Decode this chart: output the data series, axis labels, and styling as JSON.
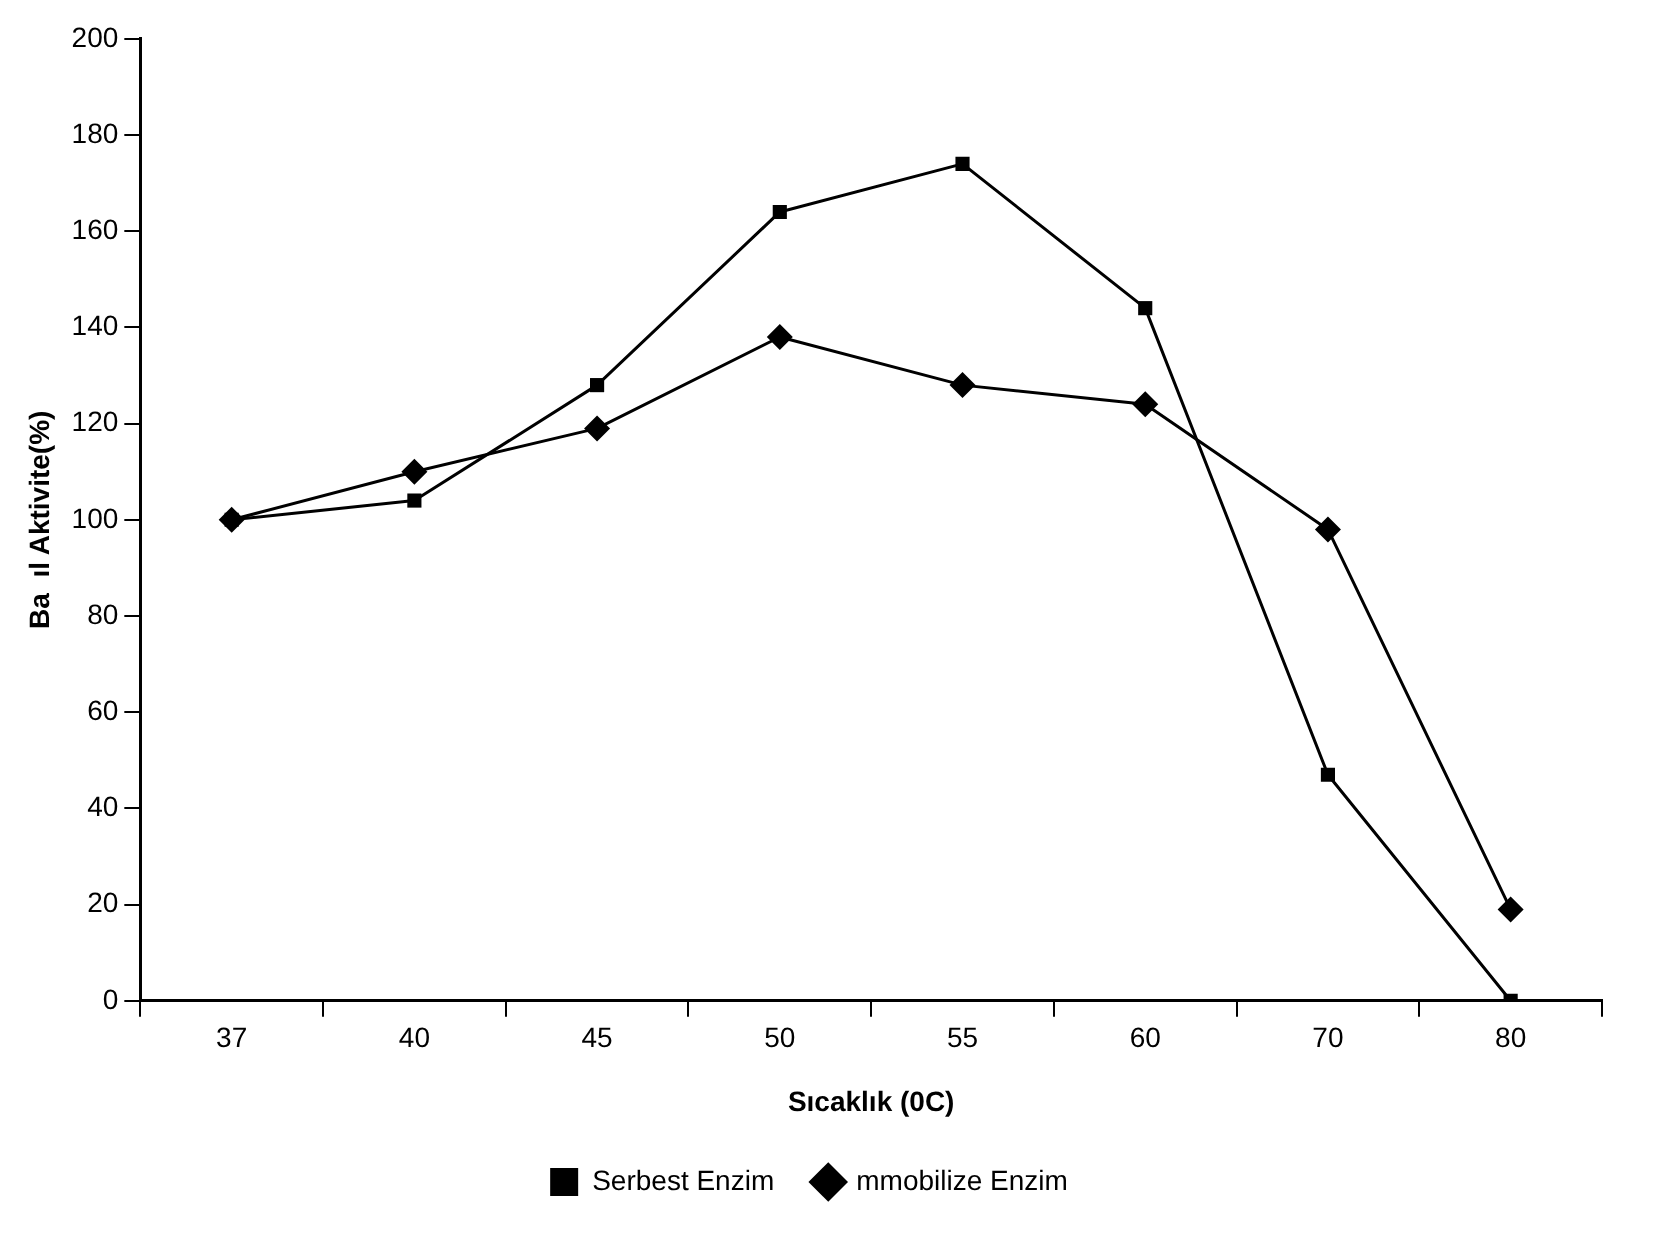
{
  "chart_data": {
    "type": "line",
    "xlabel": "Sıcaklık (0C)",
    "ylabel": "Ba  ıl Aktivite(%)",
    "categories": [
      "37",
      "40",
      "45",
      "50",
      "55",
      "60",
      "70",
      "80"
    ],
    "series": [
      {
        "name": "Serbest Enzim",
        "color": "#000000",
        "marker": "square",
        "values": [
          100,
          104,
          128,
          164,
          174,
          144,
          47,
          0
        ]
      },
      {
        "name": "mmobilize Enzim",
        "color": "#000000",
        "marker": "diamond",
        "values": [
          100,
          110,
          119,
          138,
          128,
          124,
          98,
          19
        ]
      }
    ],
    "ylim": [
      0,
      200
    ],
    "yticks": [
      0,
      20,
      40,
      60,
      80,
      100,
      120,
      140,
      160,
      180,
      200
    ],
    "grid": false,
    "legend": "bottom",
    "line_style": "solid"
  }
}
